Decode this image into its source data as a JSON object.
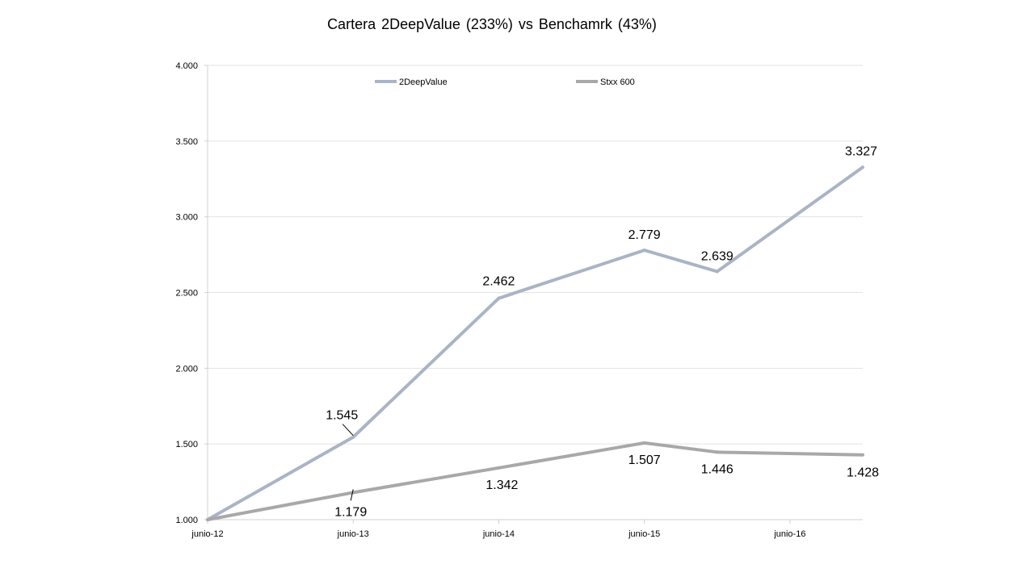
{
  "chart_data": {
    "type": "line",
    "title": "Cartera 2DeepValue (233%) vs Benchamrk (43%)",
    "xlabel": "",
    "ylabel": "",
    "x": [
      0,
      1,
      2,
      3,
      3.5,
      4.5
    ],
    "xticks": [
      {
        "pos": 0,
        "label": "junio-12"
      },
      {
        "pos": 1,
        "label": "junio-13"
      },
      {
        "pos": 2,
        "label": "junio-14"
      },
      {
        "pos": 3,
        "label": "junio-15"
      },
      {
        "pos": 4,
        "label": "junio-16"
      }
    ],
    "xlim": [
      0,
      4.5
    ],
    "ylim": [
      1000,
      4000
    ],
    "yticks": [
      {
        "value": 1000,
        "label": "1.000"
      },
      {
        "value": 1500,
        "label": "1.500"
      },
      {
        "value": 2000,
        "label": "2.000"
      },
      {
        "value": 2500,
        "label": "2.500"
      },
      {
        "value": 3000,
        "label": "3.000"
      },
      {
        "value": 3500,
        "label": "3.500"
      },
      {
        "value": 4000,
        "label": "4.000"
      }
    ],
    "grid": true,
    "legend_position": "top",
    "series": [
      {
        "name": "2DeepValue",
        "color": "#a9b4c4",
        "values": [
          1000,
          1545,
          2462,
          2779,
          2639,
          3327
        ],
        "labels": [
          "",
          "1.545",
          "2.462",
          "2.779",
          "2.639",
          "3.327"
        ]
      },
      {
        "name": "Stxx 600",
        "color": "#a8a8a8",
        "values": [
          1000,
          1179,
          1342,
          1507,
          1446,
          1428
        ],
        "labels": [
          "",
          "1.179",
          "1.342",
          "1.507",
          "1.446",
          "1.428"
        ]
      }
    ]
  }
}
